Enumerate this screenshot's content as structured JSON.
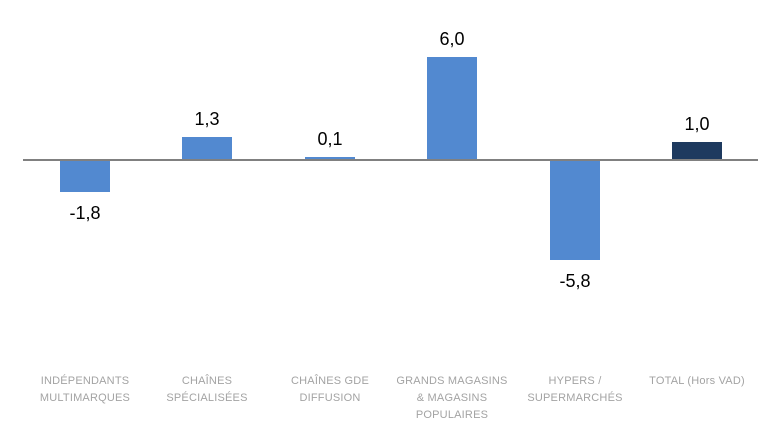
{
  "chart_data": {
    "type": "bar",
    "title": "",
    "xlabel": "",
    "ylabel": "",
    "grid": false,
    "legend": false,
    "decimal_separator": ",",
    "baseline": 0,
    "categories": [
      "INDÉPENDANTS MULTIMARQUES",
      "CHAÎNES SPÉCIALISÉES",
      "CHAÎNES GDE DIFFUSION",
      "GRANDS MAGASINS & MAGASINS POPULAIRES",
      "HYPERS / SUPERMARCHÉS",
      "TOTAL (Hors VAD)"
    ],
    "category_lines": [
      [
        "INDÉPENDANTS",
        "MULTIMARQUES"
      ],
      [
        "CHAÎNES",
        "SPÉCIALISÉES"
      ],
      [
        "CHAÎNES GDE",
        "DIFFUSION"
      ],
      [
        "GRANDS MAGASINS",
        "& MAGASINS",
        "POPULAIRES"
      ],
      [
        "HYPERS /",
        "SUPERMARCHÉS"
      ],
      [
        "TOTAL (Hors VAD)"
      ]
    ],
    "values": [
      -1.8,
      1.3,
      0.1,
      6.0,
      -5.8,
      1.0
    ],
    "value_labels": [
      "-1,8",
      "1,3",
      "0,1",
      "6,0",
      "-5,8",
      "1,0"
    ],
    "bar_colors": [
      "#5289D0",
      "#5289D0",
      "#5289D0",
      "#5289D0",
      "#5289D0",
      "#1E3A5F"
    ],
    "colors": {
      "bar_default": "#5289D0",
      "bar_total": "#1E3A5F",
      "axis_line": "#808080",
      "category_text": "#A3A3A3",
      "value_text": "#000000",
      "background": "#FFFFFF"
    }
  }
}
